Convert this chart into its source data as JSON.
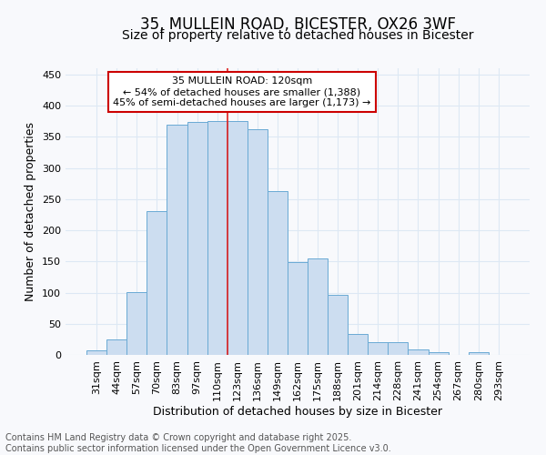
{
  "title": "35, MULLEIN ROAD, BICESTER, OX26 3WF",
  "subtitle": "Size of property relative to detached houses in Bicester",
  "xlabel": "Distribution of detached houses by size in Bicester",
  "ylabel": "Number of detached properties",
  "bar_labels": [
    "31sqm",
    "44sqm",
    "57sqm",
    "70sqm",
    "83sqm",
    "97sqm",
    "110sqm",
    "123sqm",
    "136sqm",
    "149sqm",
    "162sqm",
    "175sqm",
    "188sqm",
    "201sqm",
    "214sqm",
    "228sqm",
    "241sqm",
    "254sqm",
    "267sqm",
    "280sqm",
    "293sqm"
  ],
  "bar_values": [
    8,
    25,
    101,
    231,
    370,
    374,
    376,
    376,
    362,
    263,
    149,
    155,
    96,
    33,
    21,
    21,
    9,
    4,
    0,
    4,
    0
  ],
  "bar_color": "#ccddf0",
  "bar_edge_color": "#6aaad4",
  "vline_x": 7.0,
  "vline_color": "#dd2222",
  "ylim": [
    0,
    460
  ],
  "yticks": [
    0,
    50,
    100,
    150,
    200,
    250,
    300,
    350,
    400,
    450
  ],
  "annotation_text": "35 MULLEIN ROAD: 120sqm\n← 54% of detached houses are smaller (1,388)\n45% of semi-detached houses are larger (1,173) →",
  "annotation_box_color": "#ffffff",
  "annotation_box_edge": "#cc0000",
  "footer_text": "Contains HM Land Registry data © Crown copyright and database right 2025.\nContains public sector information licensed under the Open Government Licence v3.0.",
  "background_color": "#f8f9fc",
  "grid_color": "#dde8f4",
  "title_fontsize": 12,
  "subtitle_fontsize": 10,
  "label_fontsize": 9,
  "tick_fontsize": 8,
  "footer_fontsize": 7
}
